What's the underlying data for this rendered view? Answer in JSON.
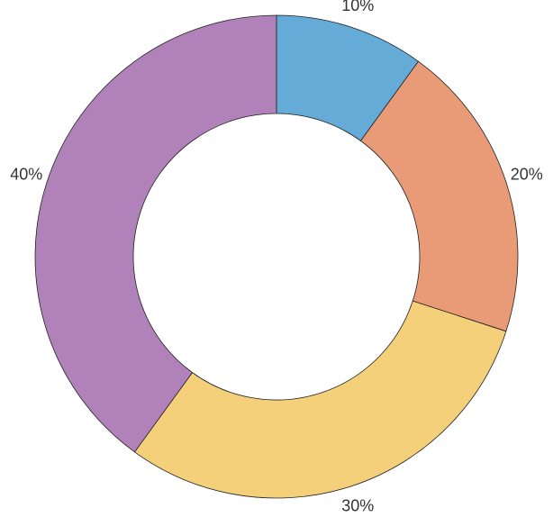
{
  "chart_data": {
    "type": "donut",
    "values": [
      10,
      20,
      30,
      40
    ],
    "value_labels": [
      "10%",
      "20%",
      "30%",
      "40%"
    ],
    "colors": [
      "#65abd8",
      "#e99a76",
      "#f4d07a",
      "#b182b9"
    ]
  }
}
